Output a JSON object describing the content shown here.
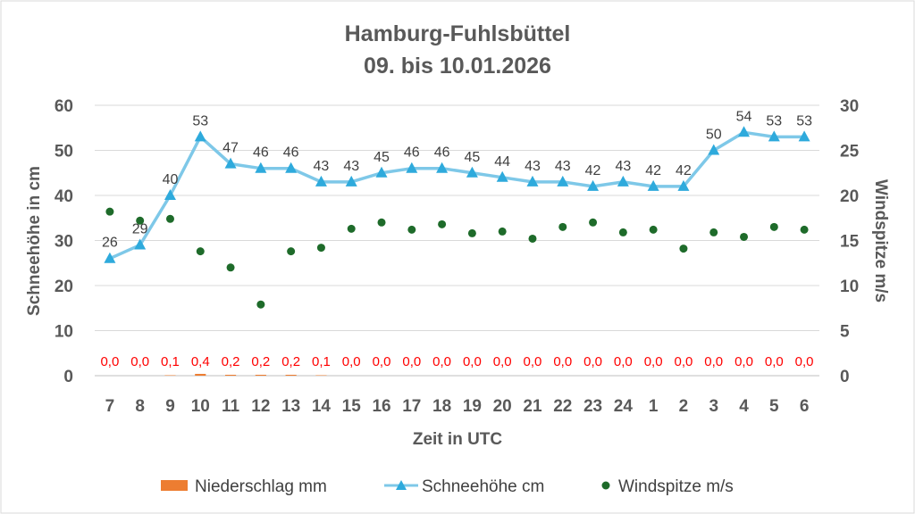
{
  "chart_data": {
    "type": "combo",
    "title": "Hamburg-Fuhlsbüttel",
    "subtitle": "09. bis 10.01.2026",
    "xlabel": "Zeit in UTC",
    "ylabel_left": "Schneehöhe in cm",
    "ylabel_right": "Windspitze m/s",
    "categories": [
      "7",
      "8",
      "9",
      "10",
      "11",
      "12",
      "13",
      "14",
      "15",
      "16",
      "17",
      "18",
      "19",
      "20",
      "21",
      "22",
      "23",
      "24",
      "1",
      "2",
      "3",
      "4",
      "5",
      "6"
    ],
    "ylim_left": [
      0,
      60
    ],
    "yticks_left": [
      "0",
      "10",
      "20",
      "30",
      "40",
      "50",
      "60"
    ],
    "ylim_right": [
      0,
      30
    ],
    "yticks_right": [
      "0",
      "5",
      "10",
      "15",
      "20",
      "25",
      "30"
    ],
    "grid": true,
    "legend_position": "bottom",
    "series": [
      {
        "name": "Niederschlag mm",
        "type": "bar",
        "axis": "left",
        "color": "#ed7d31",
        "values": [
          0.0,
          0.0,
          0.1,
          0.4,
          0.2,
          0.2,
          0.2,
          0.1,
          0.0,
          0.0,
          0.0,
          0.0,
          0.0,
          0.0,
          0.0,
          0.0,
          0.0,
          0.0,
          0.0,
          0.0,
          0.0,
          0.0,
          0.0,
          0.0
        ],
        "labels": [
          "0,0",
          "0,0",
          "0,1",
          "0,4",
          "0,2",
          "0,2",
          "0,2",
          "0,1",
          "0,0",
          "0,0",
          "0,0",
          "0,0",
          "0,0",
          "0,0",
          "0,0",
          "0,0",
          "0,0",
          "0,0",
          "0,0",
          "0,0",
          "0,0",
          "0,0",
          "0,0",
          "0,0"
        ],
        "label_color": "#ff0000"
      },
      {
        "name": "Schneehöhe cm",
        "type": "line",
        "axis": "left",
        "color": "#7ec8e8",
        "marker_color": "#2eaadc",
        "values": [
          26,
          29,
          40,
          53,
          47,
          46,
          46,
          43,
          43,
          45,
          46,
          46,
          45,
          44,
          43,
          43,
          42,
          43,
          42,
          42,
          50,
          54,
          53,
          53
        ],
        "labels": [
          "26",
          "29",
          "40",
          "53",
          "47",
          "46",
          "46",
          "43",
          "43",
          "45",
          "46",
          "46",
          "45",
          "44",
          "43",
          "43",
          "42",
          "43",
          "42",
          "42",
          "50",
          "54",
          "53",
          "53"
        ]
      },
      {
        "name": "Windspitze m/s",
        "type": "scatter",
        "axis": "right",
        "color": "#1e6b2a",
        "values": [
          18.2,
          17.2,
          17.4,
          13.8,
          12.0,
          7.9,
          13.8,
          14.2,
          16.3,
          17.0,
          16.2,
          16.8,
          15.8,
          16.0,
          15.2,
          16.5,
          17.0,
          15.9,
          16.2,
          14.1,
          15.9,
          15.4,
          16.5,
          16.2
        ]
      }
    ]
  }
}
